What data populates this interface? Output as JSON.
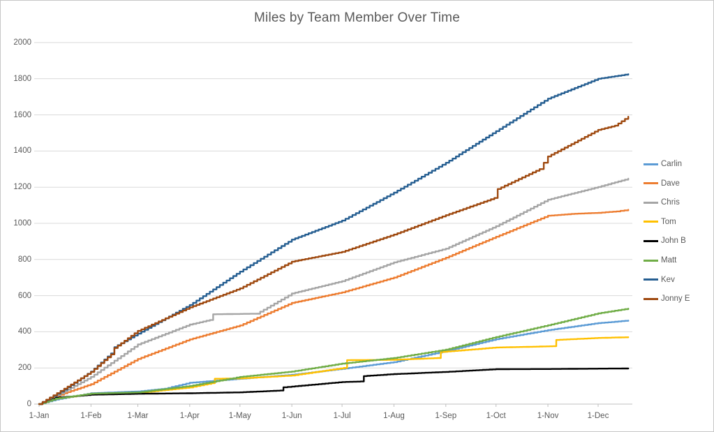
{
  "window": {
    "background": "#ffffff",
    "border_color": "#c6c6c6",
    "text_color": "#595959",
    "gridline_color": "#d9d9d9",
    "axis_line_color": "#bfbfbf"
  },
  "chart_data": {
    "type": "line",
    "title": "Miles by Team Member Over Time",
    "xlabel": "",
    "ylabel": "",
    "grid": "horizontal",
    "legend_position": "right",
    "ylim": [
      0,
      2000
    ],
    "xlim_days": [
      0,
      354
    ],
    "y_ticks": [
      0,
      200,
      400,
      600,
      800,
      1000,
      1200,
      1400,
      1600,
      1800,
      2000
    ],
    "x_tick_days": [
      0,
      31,
      59,
      90,
      120,
      151,
      181,
      212,
      243,
      273,
      304,
      334
    ],
    "x_tick_labels": [
      "1-Jan",
      "1-Feb",
      "1-Mar",
      "1-Apr",
      "1-May",
      "1-Jun",
      "1-Jul",
      "1-Aug",
      "1-Sep",
      "1-Oct",
      "1-Nov",
      "1-Dec"
    ],
    "series": [
      {
        "name": "Carlin",
        "color": "#5B9BD5",
        "points": [
          [
            0,
            0
          ],
          [
            10,
            25
          ],
          [
            31,
            60
          ],
          [
            59,
            70
          ],
          [
            75,
            85
          ],
          [
            90,
            118
          ],
          [
            120,
            140
          ],
          [
            151,
            162
          ],
          [
            181,
            195
          ],
          [
            212,
            232
          ],
          [
            243,
            293
          ],
          [
            273,
            359
          ],
          [
            304,
            409
          ],
          [
            334,
            448
          ],
          [
            352,
            462
          ]
        ]
      },
      {
        "name": "Dave",
        "color": "#ED7D31",
        "points": [
          [
            0,
            0
          ],
          [
            15,
            60
          ],
          [
            31,
            110
          ],
          [
            45,
            180
          ],
          [
            59,
            250
          ],
          [
            90,
            358
          ],
          [
            120,
            435
          ],
          [
            151,
            560
          ],
          [
            181,
            618
          ],
          [
            212,
            700
          ],
          [
            243,
            810
          ],
          [
            273,
            926
          ],
          [
            304,
            1042
          ],
          [
            320,
            1053
          ],
          [
            334,
            1058
          ],
          [
            345,
            1066
          ],
          [
            352,
            1075
          ]
        ]
      },
      {
        "name": "Chris",
        "color": "#A5A5A5",
        "points": [
          [
            0,
            0
          ],
          [
            15,
            70
          ],
          [
            31,
            150
          ],
          [
            45,
            240
          ],
          [
            59,
            330
          ],
          [
            90,
            440
          ],
          [
            102,
            465
          ],
          [
            104,
            497
          ],
          [
            130,
            500
          ],
          [
            151,
            612
          ],
          [
            181,
            680
          ],
          [
            212,
            784
          ],
          [
            243,
            860
          ],
          [
            273,
            984
          ],
          [
            304,
            1131
          ],
          [
            334,
            1201
          ],
          [
            352,
            1247
          ]
        ]
      },
      {
        "name": "Tom",
        "color": "#FFC000",
        "points": [
          [
            0,
            0
          ],
          [
            10,
            30
          ],
          [
            31,
            55
          ],
          [
            59,
            62
          ],
          [
            90,
            92
          ],
          [
            103,
            116
          ],
          [
            105,
            140
          ],
          [
            120,
            142
          ],
          [
            151,
            158
          ],
          [
            182,
            200
          ],
          [
            184,
            243
          ],
          [
            212,
            245
          ],
          [
            238,
            255
          ],
          [
            240,
            288
          ],
          [
            273,
            313
          ],
          [
            307,
            320
          ],
          [
            309,
            355
          ],
          [
            334,
            366
          ],
          [
            352,
            370
          ]
        ]
      },
      {
        "name": "John B",
        "color": "#000000",
        "points": [
          [
            0,
            0
          ],
          [
            10,
            35
          ],
          [
            31,
            52
          ],
          [
            59,
            57
          ],
          [
            90,
            60
          ],
          [
            120,
            65
          ],
          [
            144,
            75
          ],
          [
            146,
            93
          ],
          [
            151,
            97
          ],
          [
            181,
            122
          ],
          [
            192,
            125
          ],
          [
            194,
            155
          ],
          [
            212,
            166
          ],
          [
            243,
            178
          ],
          [
            273,
            193
          ],
          [
            304,
            194
          ],
          [
            334,
            196
          ],
          [
            352,
            197
          ]
        ]
      },
      {
        "name": "Matt",
        "color": "#70AD47",
        "points": [
          [
            0,
            0
          ],
          [
            10,
            30
          ],
          [
            31,
            58
          ],
          [
            59,
            65
          ],
          [
            90,
            100
          ],
          [
            120,
            150
          ],
          [
            151,
            180
          ],
          [
            181,
            224
          ],
          [
            212,
            255
          ],
          [
            243,
            301
          ],
          [
            273,
            371
          ],
          [
            304,
            436
          ],
          [
            334,
            502
          ],
          [
            352,
            528
          ]
        ]
      },
      {
        "name": "Kev",
        "color": "#255E91",
        "points": [
          [
            0,
            0
          ],
          [
            15,
            80
          ],
          [
            31,
            180
          ],
          [
            43,
            280
          ],
          [
            45,
            315
          ],
          [
            59,
            390
          ],
          [
            90,
            548
          ],
          [
            120,
            733
          ],
          [
            151,
            910
          ],
          [
            181,
            1015
          ],
          [
            212,
            1170
          ],
          [
            243,
            1335
          ],
          [
            273,
            1510
          ],
          [
            304,
            1690
          ],
          [
            334,
            1800
          ],
          [
            352,
            1825
          ]
        ]
      },
      {
        "name": "Jonny E",
        "color": "#9E480E",
        "points": [
          [
            0,
            0
          ],
          [
            15,
            85
          ],
          [
            31,
            178
          ],
          [
            43,
            275
          ],
          [
            45,
            310
          ],
          [
            59,
            405
          ],
          [
            90,
            535
          ],
          [
            120,
            640
          ],
          [
            151,
            788
          ],
          [
            181,
            842
          ],
          [
            212,
            938
          ],
          [
            243,
            1045
          ],
          [
            272,
            1140
          ],
          [
            274,
            1190
          ],
          [
            299,
            1300
          ],
          [
            304,
            1370
          ],
          [
            334,
            1517
          ],
          [
            344,
            1540
          ],
          [
            352,
            1590
          ]
        ]
      }
    ]
  }
}
